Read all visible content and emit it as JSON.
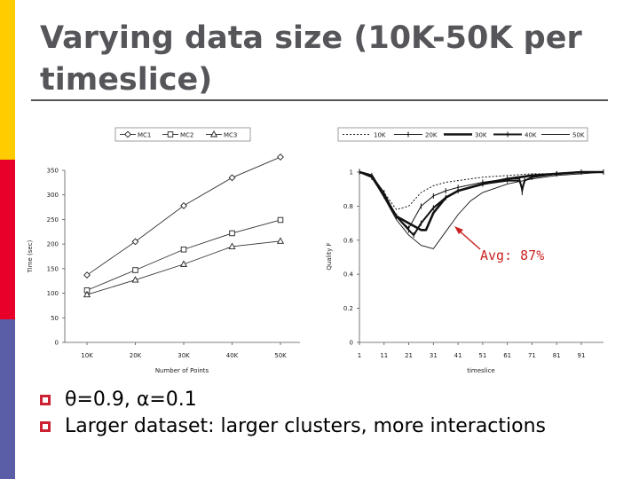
{
  "slide": {
    "title": "Varying data size (10K-50K per timeslice)",
    "bullets": [
      "θ=0.9, α=0.1",
      "Larger dataset: larger clusters, more interactions"
    ],
    "annotation": "Avg: 87%",
    "colors": {
      "bar_yellow": "#ffcc00",
      "bar_red": "#e8002a",
      "bar_blue": "#5a5ea6",
      "title": "#55555a",
      "annotation": "#cc2222",
      "bullet": "#cc2233"
    }
  },
  "chart_data": [
    {
      "type": "line",
      "xlabel": "Number of Points",
      "ylabel": "Time (sec)",
      "categories": [
        "10K",
        "20K",
        "30K",
        "40K",
        "50K"
      ],
      "ylim": [
        0,
        350
      ],
      "yticks": [
        0,
        50,
        100,
        150,
        200,
        250,
        300,
        350
      ],
      "legend_position": "top",
      "series": [
        {
          "name": "MC1",
          "marker": "diamond",
          "values": [
            137,
            205,
            278,
            335,
            377
          ]
        },
        {
          "name": "MC2",
          "marker": "square",
          "values": [
            106,
            147,
            189,
            222,
            249
          ]
        },
        {
          "name": "MC3",
          "marker": "triangle",
          "values": [
            97,
            127,
            159,
            195,
            206
          ]
        }
      ]
    },
    {
      "type": "line",
      "xlabel": "timeslice",
      "ylabel": "Quality F",
      "xlim": [
        1,
        100
      ],
      "ylim": [
        0,
        1
      ],
      "xticks": [
        1,
        11,
        21,
        31,
        41,
        51,
        61,
        71,
        81,
        91
      ],
      "yticks": [
        "0",
        "0.2",
        "0.4",
        "0.6",
        "0.8",
        "1"
      ],
      "legend_position": "top",
      "series": [
        {
          "name": "10K",
          "style": "dotted",
          "x": [
            1,
            6,
            11,
            16,
            21,
            26,
            31,
            36,
            41,
            51,
            61,
            71,
            81,
            91,
            100
          ],
          "y": [
            1.0,
            0.98,
            0.88,
            0.78,
            0.8,
            0.88,
            0.92,
            0.94,
            0.95,
            0.97,
            0.98,
            0.99,
            0.99,
            1.0,
            1.0
          ]
        },
        {
          "name": "20K",
          "style": "thin-marker",
          "x": [
            1,
            6,
            11,
            16,
            21,
            26,
            31,
            36,
            41,
            51,
            61,
            66,
            67,
            68,
            71,
            81,
            91,
            100
          ],
          "y": [
            1.0,
            0.98,
            0.88,
            0.74,
            0.67,
            0.8,
            0.86,
            0.89,
            0.91,
            0.94,
            0.96,
            0.96,
            0.88,
            0.95,
            0.97,
            0.99,
            1.0,
            1.0
          ]
        },
        {
          "name": "30K",
          "style": "bold",
          "x": [
            1,
            6,
            11,
            16,
            21,
            26,
            28,
            31,
            36,
            41,
            51,
            61,
            71,
            81,
            91,
            100
          ],
          "y": [
            1.0,
            0.98,
            0.86,
            0.74,
            0.7,
            0.66,
            0.66,
            0.76,
            0.85,
            0.89,
            0.93,
            0.96,
            0.98,
            0.99,
            1.0,
            1.0
          ]
        },
        {
          "name": "40K",
          "style": "bold-marker",
          "x": [
            1,
            6,
            11,
            16,
            21,
            23,
            26,
            31,
            36,
            41,
            51,
            61,
            66,
            67,
            68,
            71,
            81,
            91,
            100
          ],
          "y": [
            1.0,
            0.97,
            0.86,
            0.74,
            0.66,
            0.63,
            0.7,
            0.79,
            0.85,
            0.89,
            0.93,
            0.95,
            0.95,
            0.9,
            0.95,
            0.97,
            0.99,
            1.0,
            1.0
          ]
        },
        {
          "name": "50K",
          "style": "thin",
          "x": [
            1,
            6,
            11,
            16,
            21,
            26,
            31,
            36,
            41,
            46,
            51,
            61,
            71,
            81,
            91,
            100
          ],
          "y": [
            1.0,
            0.97,
            0.85,
            0.72,
            0.63,
            0.57,
            0.55,
            0.65,
            0.75,
            0.83,
            0.88,
            0.93,
            0.96,
            0.98,
            0.99,
            1.0
          ]
        }
      ]
    }
  ]
}
